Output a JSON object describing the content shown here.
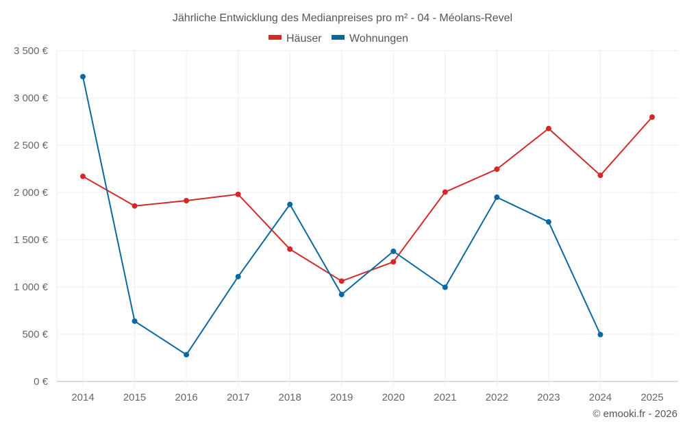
{
  "chart_data": {
    "type": "line",
    "title": "Jährliche Entwicklung des Medianpreises pro m² - 04 - Méolans-Revel",
    "xlabel": "",
    "ylabel": "",
    "categories": [
      "2014",
      "2015",
      "2016",
      "2017",
      "2018",
      "2019",
      "2020",
      "2021",
      "2022",
      "2023",
      "2024",
      "2025"
    ],
    "ylim": [
      0,
      3500
    ],
    "yticks": [
      0,
      500,
      1000,
      1500,
      2000,
      2500,
      3000,
      3500
    ],
    "ytick_labels": [
      "0 €",
      "500 €",
      "1 000 €",
      "1 500 €",
      "2 000 €",
      "2 500 €",
      "3 000 €",
      "3 500 €"
    ],
    "grid": true,
    "legend_position": "top-center",
    "series": [
      {
        "name": "Häuser",
        "color": "#d62728",
        "values": [
          2170,
          1857,
          1913,
          1980,
          1400,
          1062,
          1265,
          2004,
          2246,
          2676,
          2181,
          2797
        ]
      },
      {
        "name": "Wohnungen",
        "color": "#0868a1",
        "values": [
          3225,
          638,
          283,
          1109,
          1873,
          920,
          1377,
          996,
          1949,
          1688,
          496,
          null
        ]
      }
    ],
    "credit": "© emooki.fr - 2026"
  }
}
